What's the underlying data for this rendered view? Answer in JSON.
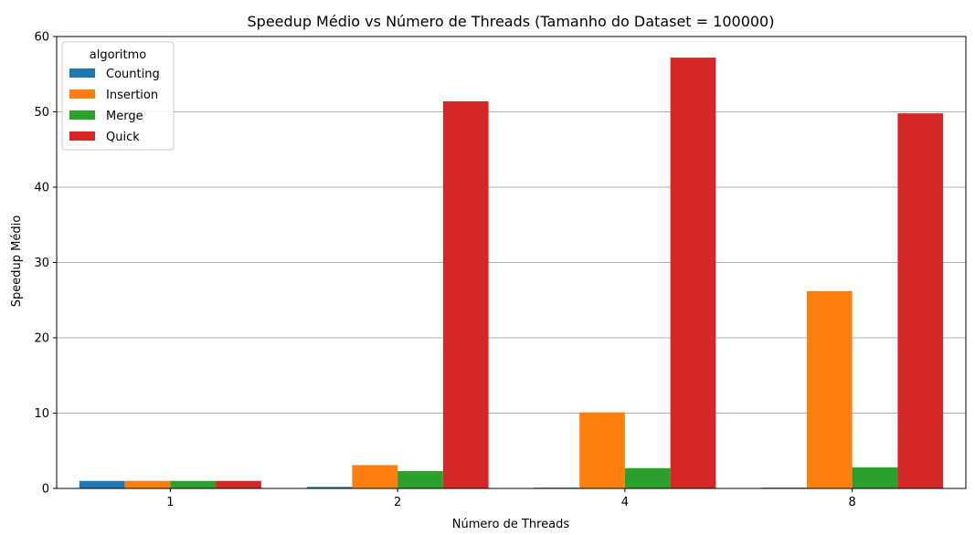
{
  "chart_data": {
    "type": "bar",
    "title": "Speedup Médio vs Número de Threads (Tamanho do Dataset = 100000)",
    "xlabel": "Número de Threads",
    "ylabel": "Speedup Médio",
    "categories": [
      "1",
      "2",
      "4",
      "8"
    ],
    "ylim": [
      0,
      60
    ],
    "yticks": [
      0,
      10,
      20,
      30,
      40,
      50,
      60
    ],
    "grid": "horizontal",
    "legend": {
      "title": "algoritmo",
      "placement": "top-left"
    },
    "series": [
      {
        "name": "Counting",
        "color": "#1f77b4",
        "values": [
          1.0,
          0.2,
          0.1,
          0.1
        ]
      },
      {
        "name": "Insertion",
        "color": "#ff7f0e",
        "values": [
          1.0,
          3.1,
          10.1,
          26.2
        ]
      },
      {
        "name": "Merge",
        "color": "#2ca02c",
        "values": [
          1.0,
          2.3,
          2.7,
          2.8
        ]
      },
      {
        "name": "Quick",
        "color": "#d62728",
        "values": [
          1.0,
          51.4,
          57.2,
          49.8
        ]
      }
    ]
  }
}
